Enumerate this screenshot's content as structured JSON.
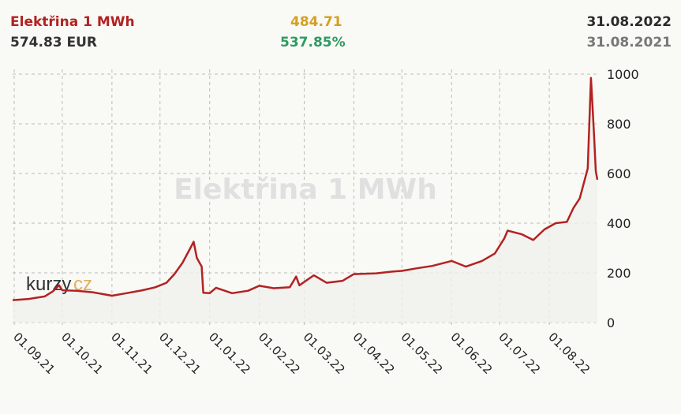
{
  "header": {
    "title": "Elektřina 1 MWh",
    "price": "574.83 EUR",
    "value": "484.71",
    "change_pct": "537.85%",
    "date_current": "31.08.2022",
    "date_previous": "31.08.2021"
  },
  "watermark": "Elektřina 1 MWh",
  "logo": {
    "part1": "kurzy",
    "part2": "cz"
  },
  "colors": {
    "line": "#b22222",
    "title": "#b22222",
    "value": "#d4a020",
    "change": "#2e9a62"
  },
  "chart_data": {
    "type": "line",
    "title": "Elektřina 1 MWh",
    "xlabel": "",
    "ylabel": "EUR",
    "ylim": [
      0,
      1000
    ],
    "yticks": [
      0,
      200,
      400,
      600,
      800,
      1000
    ],
    "xticks": [
      "01.09.21",
      "01.10.21",
      "01.11.21",
      "01.12.21",
      "01.01.22",
      "01.02.22",
      "01.03.22",
      "01.04.22",
      "01.05.22",
      "01.06.22",
      "01.07.22",
      "01.08.22"
    ],
    "grid": true,
    "legend": "none",
    "series": [
      {
        "name": "Elektřina 1 MWh",
        "points": [
          [
            "31.08.21",
            90
          ],
          [
            "10.09.21",
            95
          ],
          [
            "20.09.21",
            105
          ],
          [
            "25.09.21",
            125
          ],
          [
            "29.09.21",
            150
          ],
          [
            "01.10.21",
            130
          ],
          [
            "10.10.21",
            128
          ],
          [
            "20.10.21",
            122
          ],
          [
            "01.11.21",
            108
          ],
          [
            "10.11.21",
            118
          ],
          [
            "20.11.21",
            130
          ],
          [
            "28.11.21",
            142
          ],
          [
            "05.12.21",
            160
          ],
          [
            "10.12.21",
            195
          ],
          [
            "15.12.21",
            240
          ],
          [
            "20.12.21",
            300
          ],
          [
            "22.12.21",
            325
          ],
          [
            "24.12.21",
            260
          ],
          [
            "27.12.21",
            225
          ],
          [
            "28.12.21",
            120
          ],
          [
            "01.01.22",
            118
          ],
          [
            "05.01.22",
            140
          ],
          [
            "15.01.22",
            118
          ],
          [
            "25.01.22",
            128
          ],
          [
            "01.02.22",
            148
          ],
          [
            "10.02.22",
            138
          ],
          [
            "20.02.22",
            142
          ],
          [
            "24.02.22",
            185
          ],
          [
            "26.02.22",
            150
          ],
          [
            "07.03.22",
            190
          ],
          [
            "15.03.22",
            160
          ],
          [
            "25.03.22",
            168
          ],
          [
            "01.04.22",
            195
          ],
          [
            "15.04.22",
            198
          ],
          [
            "25.04.22",
            205
          ],
          [
            "01.05.22",
            208
          ],
          [
            "10.05.22",
            218
          ],
          [
            "20.05.22",
            228
          ],
          [
            "01.06.22",
            248
          ],
          [
            "10.06.22",
            225
          ],
          [
            "20.06.22",
            248
          ],
          [
            "28.06.22",
            278
          ],
          [
            "04.07.22",
            340
          ],
          [
            "06.07.22",
            370
          ],
          [
            "15.07.22",
            355
          ],
          [
            "22.07.22",
            332
          ],
          [
            "29.07.22",
            375
          ],
          [
            "05.08.22",
            400
          ],
          [
            "12.08.22",
            405
          ],
          [
            "16.08.22",
            460
          ],
          [
            "20.08.22",
            500
          ],
          [
            "25.08.22",
            620
          ],
          [
            "27.08.22",
            985
          ],
          [
            "29.08.22",
            750
          ],
          [
            "30.08.22",
            610
          ],
          [
            "31.08.22",
            575
          ]
        ]
      }
    ]
  }
}
